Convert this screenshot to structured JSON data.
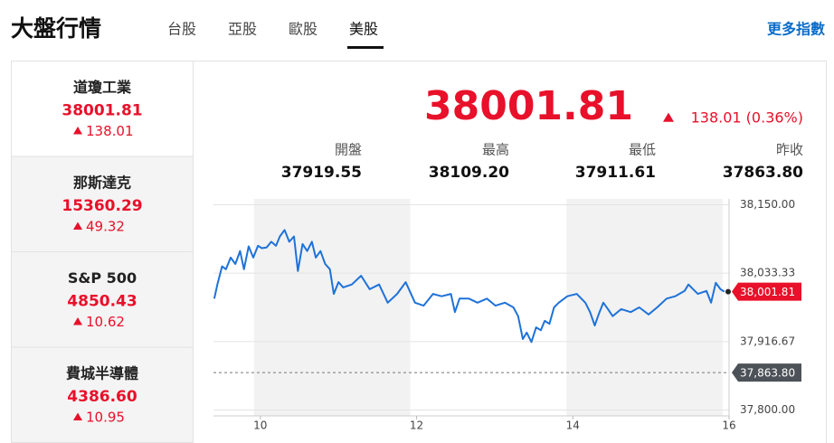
{
  "header": {
    "title": "大盤行情",
    "tabs": [
      "台股",
      "亞股",
      "歐股",
      "美股"
    ],
    "active_tab": 3,
    "more_link": "更多指數"
  },
  "indices": [
    {
      "name": "道瓊工業",
      "value": "38001.81",
      "change": "138.01"
    },
    {
      "name": "那斯達克",
      "value": "15360.29",
      "change": "49.32"
    },
    {
      "name": "S&P 500",
      "value": "4850.43",
      "change": "10.62"
    },
    {
      "name": "費城半導體",
      "value": "4386.60",
      "change": "10.95"
    }
  ],
  "selected_index": 0,
  "quote": {
    "value": "38001.81",
    "change": "138.01 (0.36%)",
    "stats": [
      {
        "label": "開盤",
        "value": "37919.55"
      },
      {
        "label": "最高",
        "value": "38109.20"
      },
      {
        "label": "最低",
        "value": "37911.61"
      },
      {
        "label": "昨收",
        "value": "37863.80"
      }
    ]
  },
  "chart_data": {
    "type": "line",
    "color": "#1f72d8",
    "x": [
      9.41,
      9.45,
      9.51,
      9.56,
      9.62,
      9.68,
      9.74,
      9.79,
      9.85,
      9.91,
      9.97,
      10.02,
      10.08,
      10.14,
      10.2,
      10.25,
      10.31,
      10.37,
      10.43,
      10.48,
      10.54,
      10.6,
      10.66,
      10.71,
      10.77,
      10.83,
      10.89,
      10.94,
      11.0,
      11.06,
      11.17,
      11.29,
      11.4,
      11.52,
      11.63,
      11.75,
      11.86,
      11.98,
      12.09,
      12.21,
      12.32,
      12.44,
      12.49,
      12.55,
      12.67,
      12.78,
      12.9,
      13.01,
      13.13,
      13.24,
      13.3,
      13.36,
      13.41,
      13.47,
      13.53,
      13.59,
      13.64,
      13.7,
      13.76,
      13.82,
      13.93,
      14.05,
      14.16,
      14.22,
      14.28,
      14.33,
      14.39,
      14.45,
      14.51,
      14.62,
      14.74,
      14.85,
      14.97,
      15.08,
      15.2,
      15.31,
      15.43,
      15.48,
      15.54,
      15.6,
      15.71,
      15.77,
      15.83,
      15.89,
      15.94
    ],
    "values": [
      37990,
      38014,
      38045,
      38040,
      38060,
      38049,
      38071,
      38040,
      38079,
      38060,
      38080,
      38076,
      38077,
      38087,
      38080,
      38096,
      38107,
      38087,
      38096,
      38037,
      38083,
      38071,
      38087,
      38060,
      38071,
      38049,
      38040,
      37998,
      38018,
      38009,
      38014,
      38029,
      38006,
      38014,
      37983,
      37998,
      38018,
      37983,
      37978,
      37998,
      37994,
      37998,
      37967,
      37990,
      37990,
      37983,
      37990,
      37978,
      37983,
      37975,
      37960,
      37921,
      37932,
      37916,
      37941,
      37936,
      37952,
      37947,
      37975,
      37983,
      37994,
      37998,
      37983,
      37967,
      37944,
      37963,
      37983,
      37972,
      37960,
      37972,
      37967,
      37975,
      37963,
      37975,
      37990,
      37994,
      38003,
      38014,
      38006,
      37998,
      38003,
      37983,
      38017,
      38006,
      38001.81
    ],
    "xlim": [
      9.4,
      16
    ],
    "ylim": [
      37790,
      38160
    ],
    "xticks": [
      10,
      12,
      14,
      16
    ],
    "yticks": [
      {
        "value": 38150,
        "label": "38,150.00"
      },
      {
        "value": 38033.33,
        "label": "38,033.33"
      },
      {
        "value": 37916.67,
        "label": "37,916.67"
      },
      {
        "value": 37800,
        "label": "37,800.00"
      }
    ],
    "reference": {
      "value": 37863.8,
      "label": "37,863.80"
    },
    "last_value": {
      "value": 38001.81,
      "label": "38,001.81"
    },
    "grid": true
  }
}
